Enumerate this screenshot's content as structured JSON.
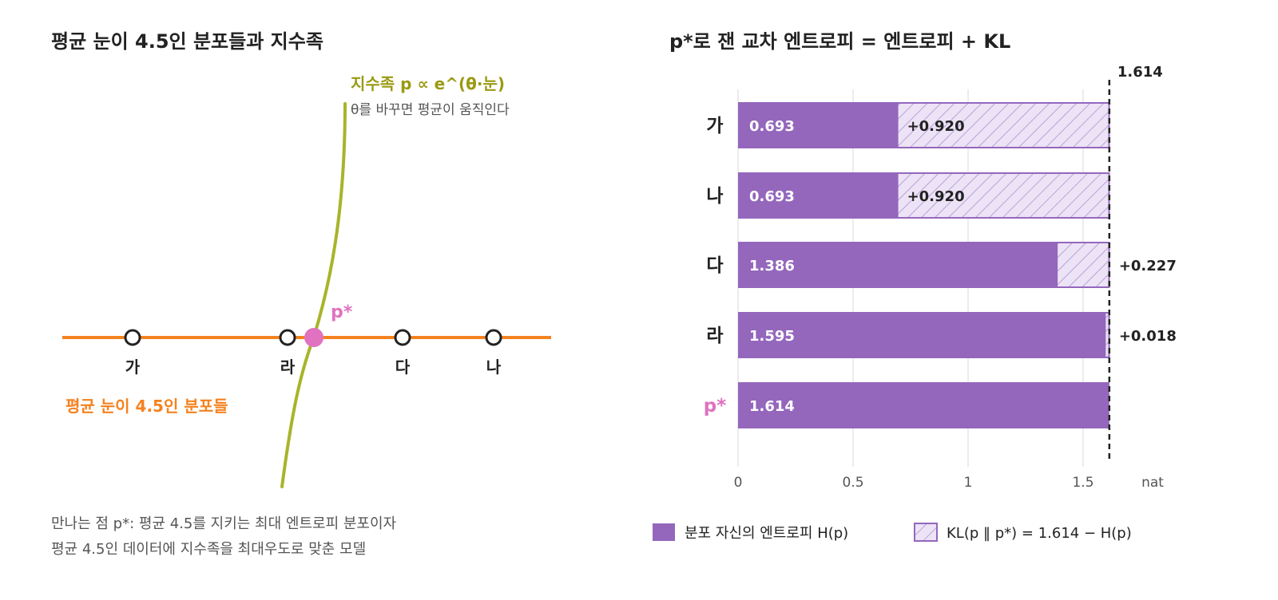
{
  "left_panel": {
    "title": "평균 눈이 4.5인 분포들과 지수족",
    "family_label": "지수족 p ∝ e^(θ·눈)",
    "family_note": "θ를 바꾸면 평균이 움직인다",
    "line_label": "평균 눈이 4.5인 분포들",
    "pstar_label": "p*",
    "points": [
      "가",
      "라",
      "다",
      "나"
    ],
    "caption_lines": [
      "만나는 점 p*: 평균 4.5를 지키는 최대 엔트로피 분포이자",
      "평균 4.5인 데이터에 지수족을 최대우도로 맞춘 모델"
    ],
    "colors": {
      "line": "#f5821f",
      "family": "#a8b42a",
      "family_text": "#9a9a14",
      "pstar": "#e072c0"
    }
  },
  "right_panel": {
    "title": "p*로 잰 교차 엔트로피 = 엔트로피 + KL",
    "colors": {
      "entropy": "#9467bd",
      "kl_fill": "#ece3f6",
      "kl_hatch": "#b9a3d6",
      "pstar_label": "#e072c0"
    }
  },
  "chart_data": {
    "type": "bar",
    "orientation": "horizontal",
    "stacked": true,
    "categories": [
      "가",
      "나",
      "다",
      "라",
      "p*"
    ],
    "series": [
      {
        "name": "분포 자신의 엔트로피 H(p)",
        "values": [
          0.693,
          0.693,
          1.386,
          1.595,
          1.614
        ],
        "labels": [
          "0.693",
          "0.693",
          "1.386",
          "1.595",
          "1.614"
        ]
      },
      {
        "name": "KL(p ‖ p*) = 1.614 − H(p)",
        "values": [
          0.92,
          0.92,
          0.227,
          0.018,
          0
        ],
        "labels": [
          "+0.920",
          "+0.920",
          "+0.227",
          "+0.018",
          ""
        ]
      }
    ],
    "reference_line": {
      "value": 1.614,
      "label": "1.614"
    },
    "xlim": [
      0,
      1.65
    ],
    "xticks": [
      0,
      0.5,
      1,
      1.5
    ],
    "xtick_labels": [
      "0",
      "0.5",
      "1",
      "1.5"
    ],
    "xunit": "nat",
    "grid": true,
    "legend_position": "bottom"
  }
}
